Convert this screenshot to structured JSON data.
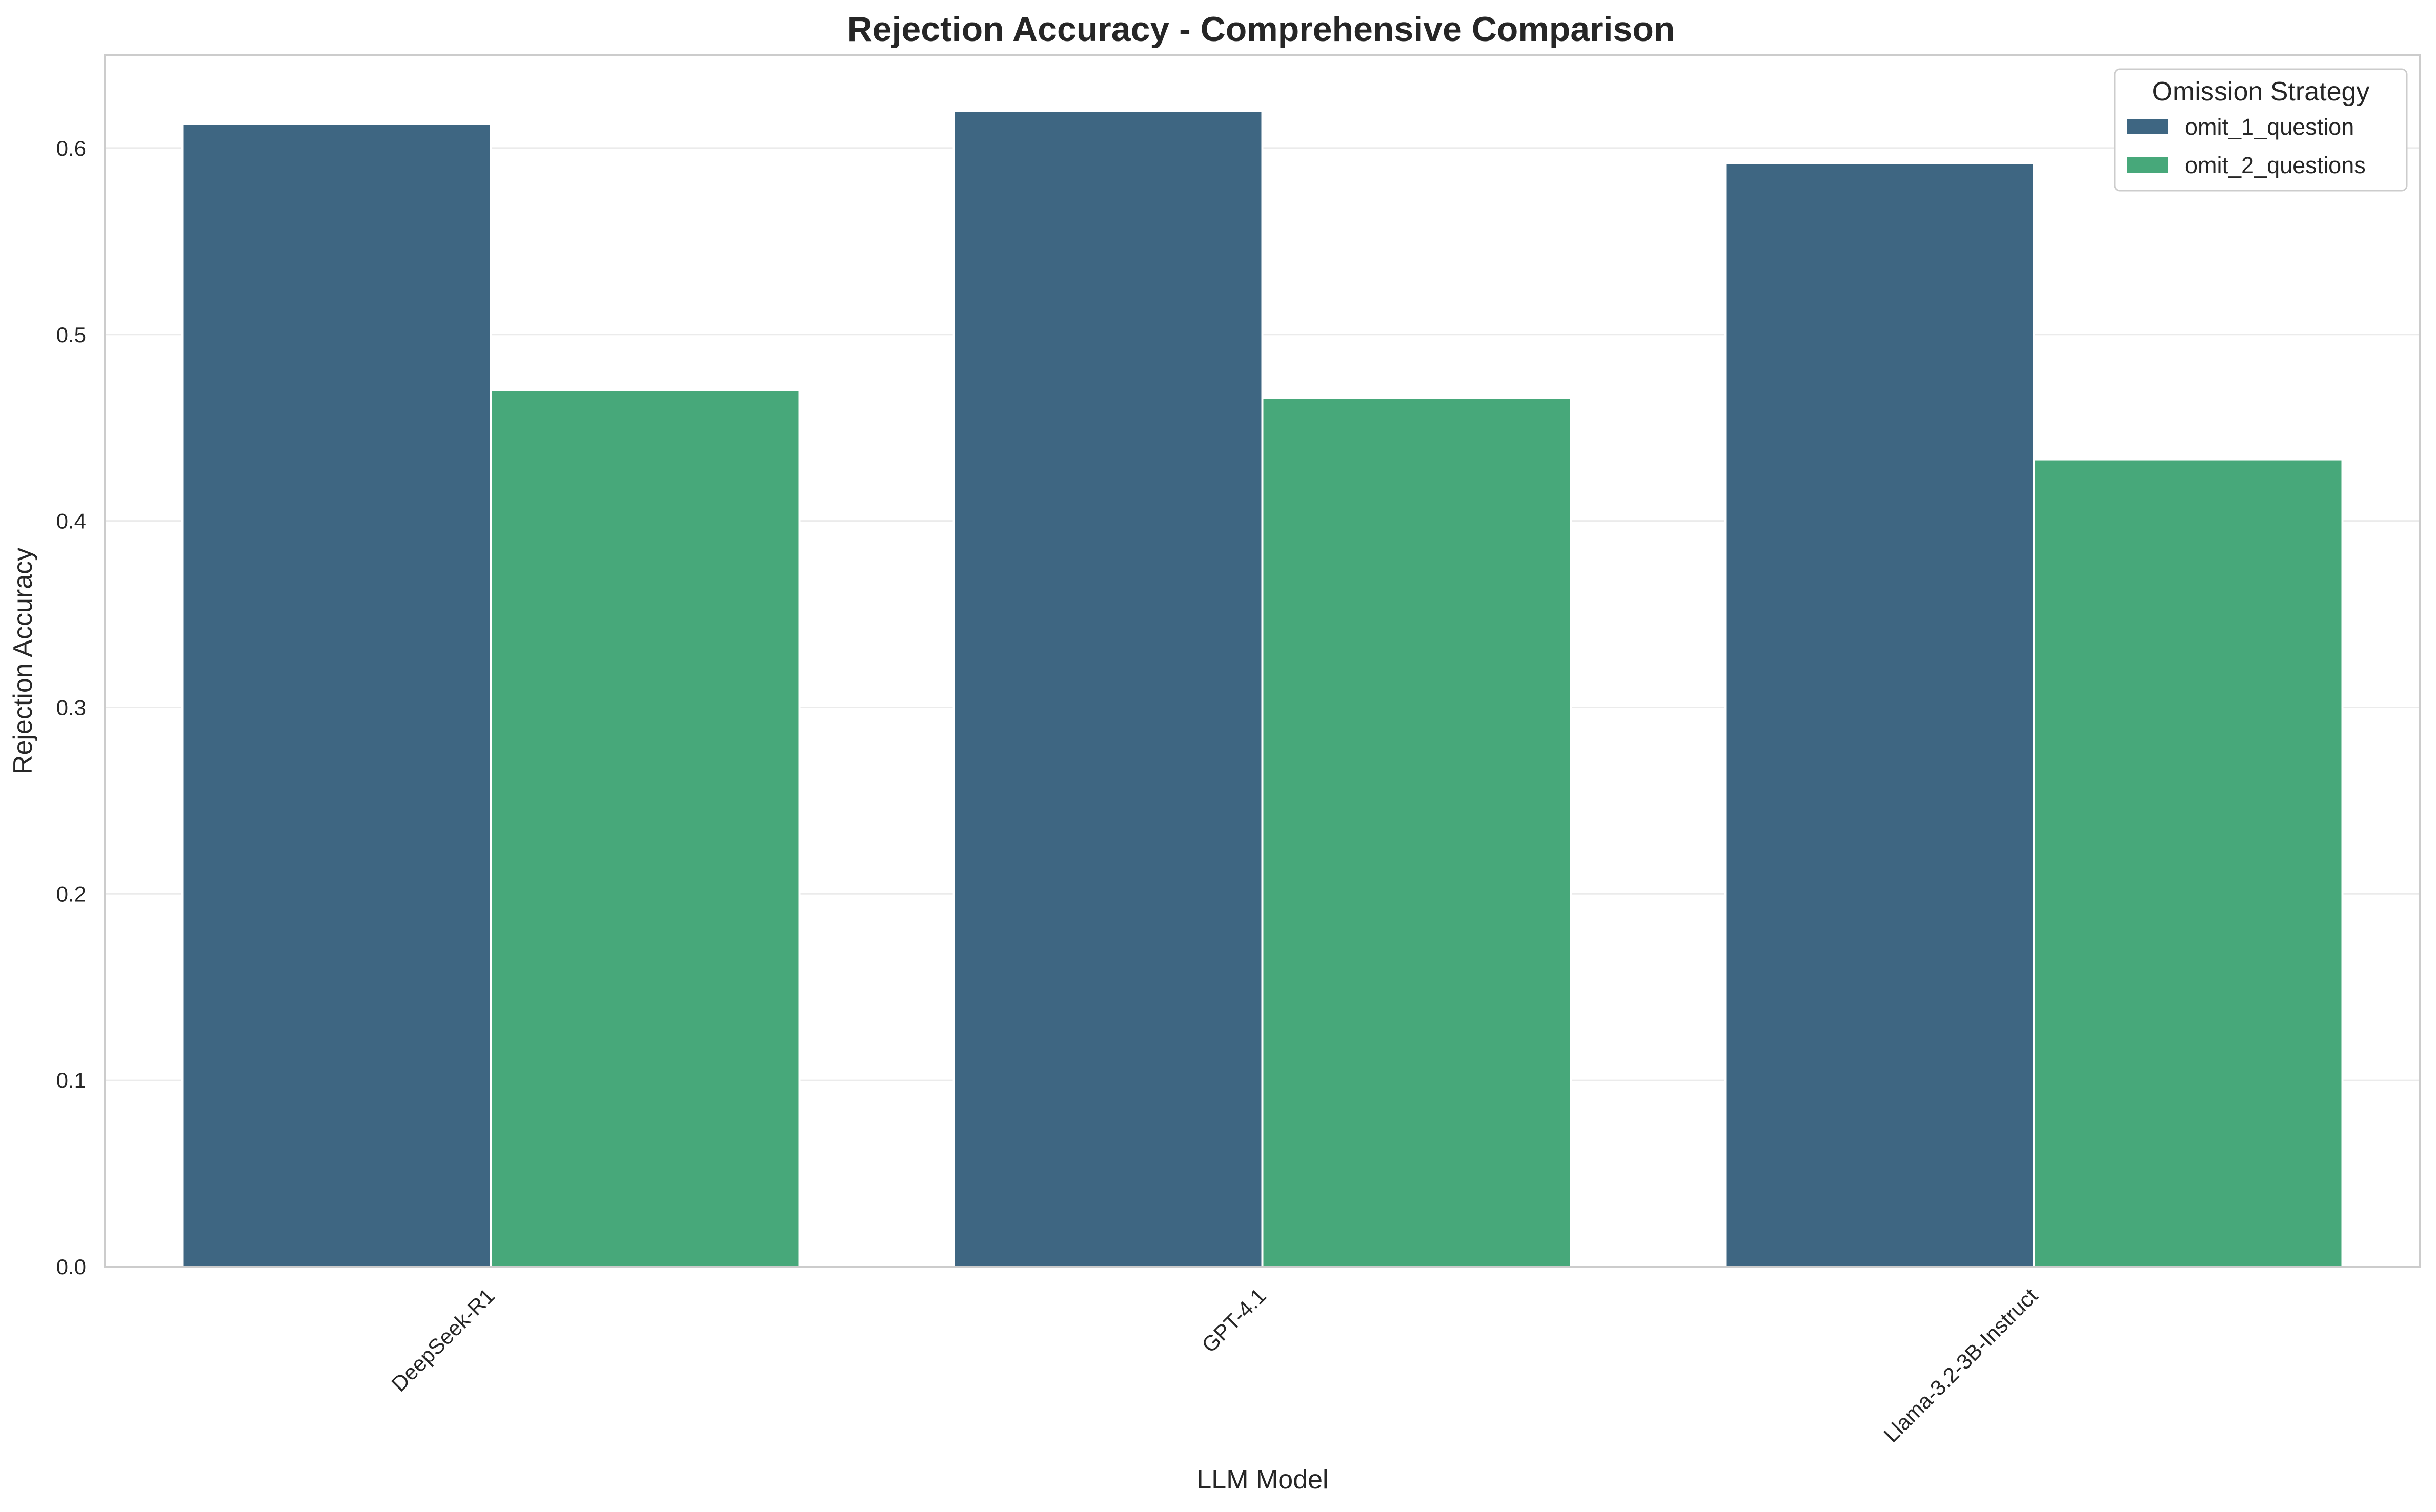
{
  "chart_data": {
    "type": "bar",
    "title": "Rejection Accuracy - Comprehensive Comparison",
    "xlabel": "LLM Model",
    "ylabel": "Rejection Accuracy",
    "categories": [
      "DeepSeek-R1",
      "GPT-4.1",
      "Llama-3.2-3B-Instruct"
    ],
    "series": [
      {
        "name": "omit_1_question",
        "values": [
          0.613,
          0.62,
          0.592
        ],
        "color": "#3e6682"
      },
      {
        "name": "omit_2_questions",
        "values": [
          0.47,
          0.466,
          0.433
        ],
        "color": "#47a87a"
      }
    ],
    "yticks": [
      "0.0",
      "0.1",
      "0.2",
      "0.3",
      "0.4",
      "0.5",
      "0.6"
    ],
    "ylim": [
      0,
      0.65
    ],
    "grid": true,
    "legend": {
      "title": "Omission Strategy",
      "placement": "top-right"
    }
  }
}
